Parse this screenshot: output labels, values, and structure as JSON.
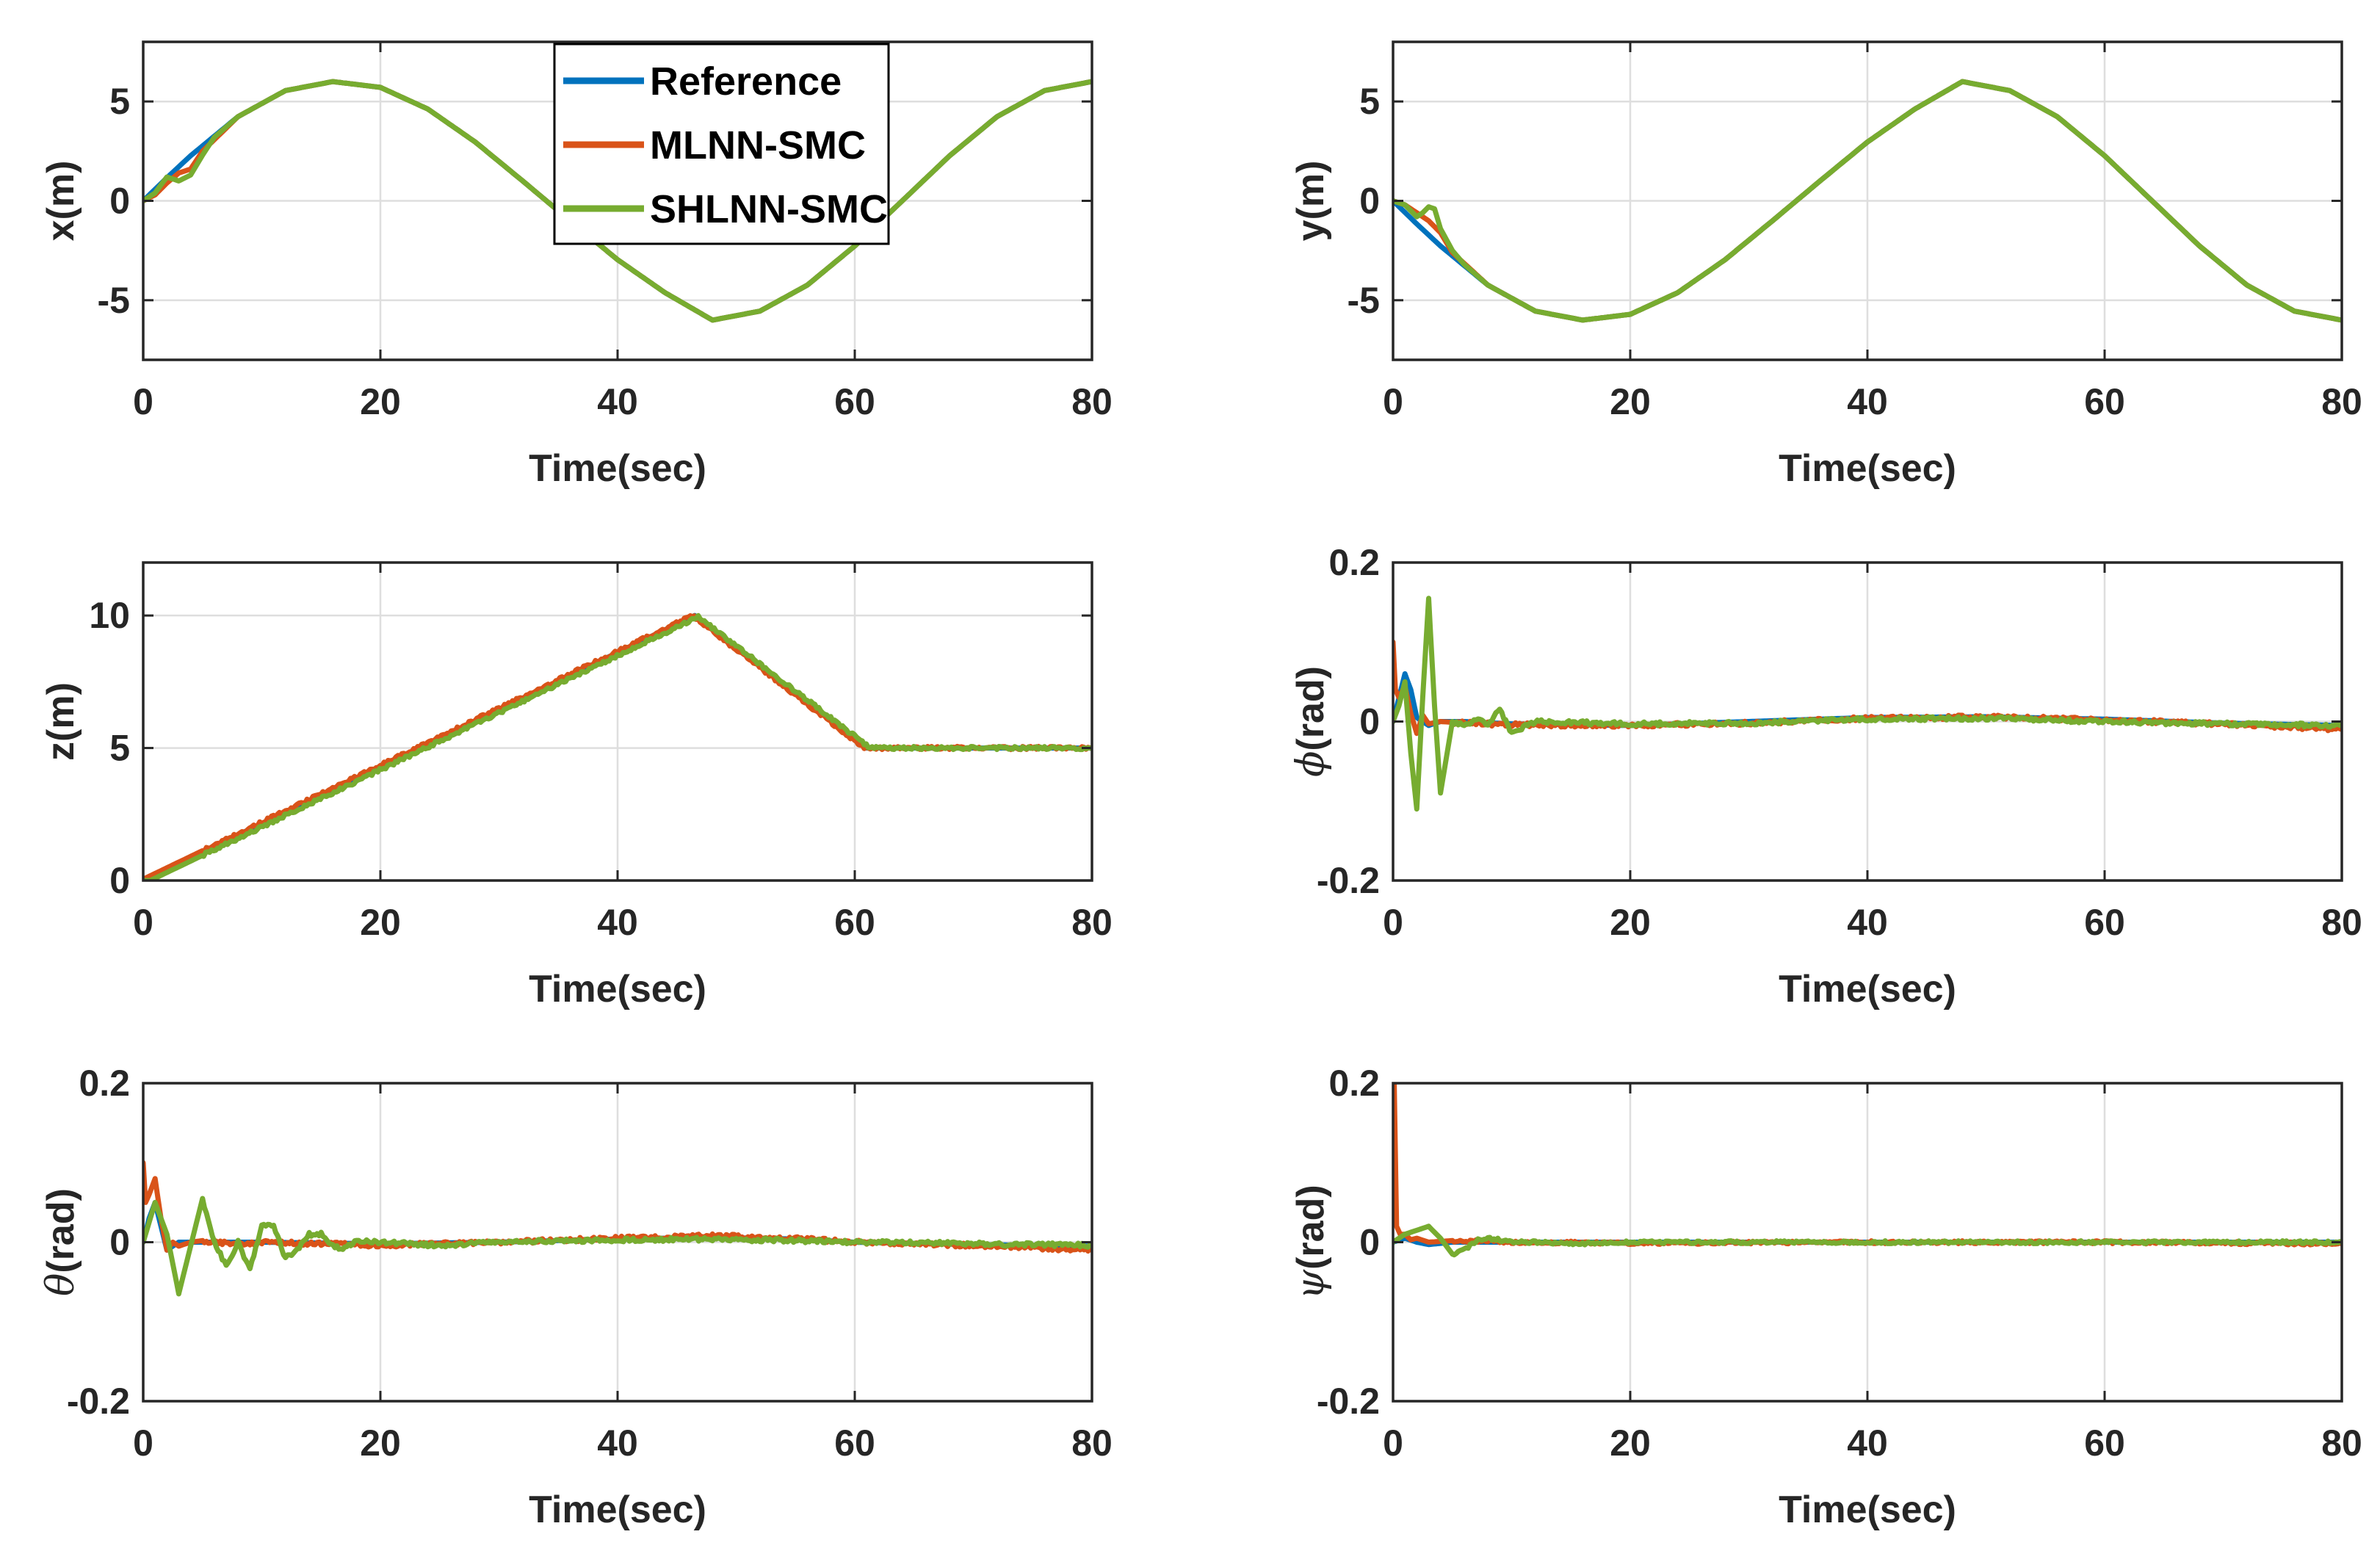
{
  "colors": {
    "reference": "#0072BD",
    "mlnn": "#D95319",
    "shlnn": "#77AC30",
    "grid": "#dedede",
    "axis": "#262626"
  },
  "legend": {
    "placement": "top-center of first panel",
    "entries": [
      "Reference",
      "MLNN-SMC",
      "SHLNN-SMC"
    ]
  },
  "chart_data": [
    {
      "type": "line",
      "panel": "x",
      "xlabel": "Time(sec)",
      "ylabel": "x(m)",
      "ylabel_symbol": "",
      "ylabel_rest": "x(m)",
      "xlim": [
        0,
        80
      ],
      "ylim": [
        -8,
        8
      ],
      "xticks": [
        0,
        20,
        40,
        60,
        80
      ],
      "yticks": [
        -5,
        0,
        5
      ],
      "ytick_labels": [
        "-5",
        "0",
        "5"
      ],
      "grid": true,
      "series": [
        {
          "name": "Reference",
          "x": [
            0,
            2,
            4,
            8,
            12,
            16,
            20,
            24,
            28,
            32,
            36,
            40,
            44,
            48,
            52,
            56,
            60,
            64,
            68,
            72,
            76,
            80
          ],
          "y": [
            0,
            1.16,
            2.27,
            4.24,
            5.55,
            6.0,
            5.71,
            4.62,
            2.96,
            1.0,
            -1.0,
            -2.96,
            -4.62,
            -6.0,
            -5.55,
            -4.24,
            -2.27,
            0,
            2.27,
            4.24,
            5.55,
            6.0
          ]
        },
        {
          "name": "MLNN-SMC",
          "x": [
            0,
            1,
            2,
            3,
            4,
            5,
            8,
            12,
            16,
            20,
            24,
            28,
            32,
            36,
            40,
            44,
            48,
            52,
            56,
            60,
            64,
            68,
            72,
            76,
            80
          ],
          "y": [
            0,
            0.3,
            0.9,
            1.4,
            1.6,
            2.5,
            4.24,
            5.55,
            6.0,
            5.71,
            4.62,
            2.96,
            1.0,
            -1.0,
            -2.96,
            -4.62,
            -6.0,
            -5.55,
            -4.24,
            -2.27,
            0,
            2.27,
            4.24,
            5.55,
            6.0
          ]
        },
        {
          "name": "SHLNN-SMC",
          "x": [
            0,
            1,
            2,
            3,
            4,
            5,
            6,
            8,
            12,
            16,
            20,
            24,
            28,
            32,
            36,
            40,
            44,
            48,
            52,
            56,
            60,
            64,
            68,
            72,
            76,
            80
          ],
          "y": [
            0,
            0.4,
            1.2,
            1.0,
            1.3,
            2.3,
            3.2,
            4.24,
            5.55,
            6.0,
            5.71,
            4.62,
            2.96,
            1.0,
            -1.0,
            -2.96,
            -4.62,
            -6.0,
            -5.55,
            -4.24,
            -2.27,
            0,
            2.27,
            4.24,
            5.55,
            6.0
          ]
        }
      ]
    },
    {
      "type": "line",
      "panel": "y",
      "xlabel": "Time(sec)",
      "ylabel": "y(m)",
      "ylabel_symbol": "",
      "ylabel_rest": "y(m)",
      "xlim": [
        0,
        80
      ],
      "ylim": [
        -8,
        8
      ],
      "xticks": [
        0,
        20,
        40,
        60,
        80
      ],
      "yticks": [
        -5,
        0,
        5
      ],
      "ytick_labels": [
        "-5",
        "0",
        "5"
      ],
      "grid": true,
      "series": [
        {
          "name": "Reference",
          "x": [
            0,
            2,
            4,
            8,
            12,
            16,
            20,
            24,
            28,
            32,
            36,
            40,
            44,
            48,
            52,
            56,
            60,
            64,
            68,
            72,
            76,
            80
          ],
          "y": [
            0,
            -1.16,
            -2.27,
            -4.24,
            -5.55,
            -6.0,
            -5.71,
            -4.62,
            -2.96,
            -1.0,
            1.0,
            2.96,
            4.62,
            6.0,
            5.55,
            4.24,
            2.27,
            0,
            -2.27,
            -4.24,
            -5.55,
            -6.0
          ]
        },
        {
          "name": "MLNN-SMC",
          "x": [
            0,
            1,
            2,
            3,
            4,
            5,
            8,
            12,
            16,
            20,
            24,
            28,
            32,
            36,
            40,
            44,
            48,
            52,
            56,
            60,
            64,
            68,
            72,
            76,
            80
          ],
          "y": [
            0,
            -0.2,
            -0.6,
            -1.0,
            -1.6,
            -2.6,
            -4.24,
            -5.55,
            -6.0,
            -5.71,
            -4.62,
            -2.96,
            -1.0,
            1.0,
            2.96,
            4.62,
            6.0,
            5.55,
            4.24,
            2.27,
            0,
            -2.27,
            -4.24,
            -5.55,
            -6.0
          ]
        },
        {
          "name": "SHLNN-SMC",
          "x": [
            0,
            1,
            2,
            2.5,
            3,
            3.5,
            4,
            5,
            6,
            8,
            12,
            16,
            20,
            24,
            28,
            32,
            36,
            40,
            44,
            48,
            52,
            56,
            60,
            64,
            68,
            72,
            76,
            80
          ],
          "y": [
            0,
            -0.2,
            -0.8,
            -0.6,
            -0.3,
            -0.4,
            -1.4,
            -2.5,
            -3.2,
            -4.24,
            -5.55,
            -6.0,
            -5.71,
            -4.62,
            -2.96,
            -1.0,
            1.0,
            2.96,
            4.62,
            6.0,
            5.55,
            4.24,
            2.27,
            0,
            -2.27,
            -4.24,
            -5.55,
            -6.0
          ]
        }
      ]
    },
    {
      "type": "line",
      "panel": "z",
      "xlabel": "Time(sec)",
      "ylabel": "z(m)",
      "ylabel_symbol": "",
      "ylabel_rest": "z(m)",
      "xlim": [
        0,
        80
      ],
      "ylim": [
        0,
        12
      ],
      "xticks": [
        0,
        20,
        40,
        60,
        80
      ],
      "yticks": [
        0,
        5,
        10
      ],
      "ytick_labels": [
        "0",
        "5",
        "10"
      ],
      "grid": true,
      "series": [
        {
          "name": "Reference",
          "x": [
            0,
            46.5,
            61,
            80
          ],
          "y": [
            0,
            10,
            5,
            5
          ]
        },
        {
          "name": "MLNN-SMC",
          "x": [
            0,
            46.3,
            60.8,
            80
          ],
          "y": [
            0.05,
            10,
            5,
            5
          ]
        },
        {
          "name": "SHLNN-SMC",
          "x": [
            0,
            0.6,
            46.8,
            61.3,
            80
          ],
          "y": [
            0,
            0,
            9.95,
            5,
            5
          ]
        }
      ]
    },
    {
      "type": "line",
      "panel": "phi",
      "xlabel": "Time(sec)",
      "ylabel": "ϕ(rad)",
      "ylabel_symbol": "ϕ",
      "ylabel_rest": "(rad)",
      "xlim": [
        0,
        80
      ],
      "ylim": [
        -0.2,
        0.2
      ],
      "xticks": [
        0,
        20,
        40,
        60,
        80
      ],
      "yticks": [
        -0.2,
        0,
        0.2
      ],
      "ytick_labels": [
        "-0.2",
        "0",
        "0.2"
      ],
      "grid": true,
      "series": [
        {
          "name": "Reference",
          "x": [
            0,
            0.5,
            1,
            1.5,
            2,
            3,
            4,
            6,
            10,
            20,
            30,
            40,
            50,
            60,
            70,
            80
          ],
          "y": [
            0,
            0.03,
            0.06,
            0.04,
            0.005,
            -0.005,
            0,
            0,
            -0.003,
            -0.005,
            0,
            0.005,
            0.006,
            0.003,
            -0.002,
            -0.005
          ]
        },
        {
          "name": "MLNN-SMC",
          "x": [
            0,
            0.2,
            0.5,
            1,
            1.5,
            2,
            2.5,
            3,
            4,
            6,
            10,
            20,
            30,
            40,
            50,
            60,
            70,
            80
          ],
          "y": [
            0.1,
            0.04,
            0.03,
            0.045,
            0.01,
            -0.015,
            0.008,
            -0.003,
            0,
            -0.002,
            -0.004,
            -0.005,
            -0.002,
            0.004,
            0.006,
            0.002,
            -0.003,
            -0.01
          ]
        },
        {
          "name": "SHLNN-SMC",
          "x": [
            0,
            0.5,
            1,
            1.5,
            2,
            2.5,
            3,
            3.5,
            4,
            5,
            6,
            7,
            8,
            9,
            10,
            12,
            20,
            30,
            40,
            50,
            60,
            70,
            80
          ],
          "y": [
            0,
            0.02,
            0.05,
            -0.04,
            -0.11,
            0.03,
            0.155,
            0.02,
            -0.09,
            0.0,
            -0.005,
            0.003,
            -0.003,
            0.015,
            -0.015,
            0.0,
            -0.003,
            -0.002,
            0.003,
            0.004,
            0.0,
            -0.003,
            -0.005
          ]
        }
      ]
    },
    {
      "type": "line",
      "panel": "theta",
      "xlabel": "Time(sec)",
      "ylabel": "θ(rad)",
      "ylabel_symbol": "θ",
      "ylabel_rest": "(rad)",
      "xlim": [
        0,
        80
      ],
      "ylim": [
        -0.2,
        0.2
      ],
      "xticks": [
        0,
        20,
        40,
        60,
        80
      ],
      "yticks": [
        -0.2,
        0,
        0.2
      ],
      "ytick_labels": [
        "-0.2",
        "0",
        "0.2"
      ],
      "grid": true,
      "series": [
        {
          "name": "Reference",
          "x": [
            0,
            0.5,
            1,
            1.5,
            2,
            3,
            5,
            10,
            20,
            30,
            40,
            48,
            55,
            60,
            70,
            80
          ],
          "y": [
            0,
            0.03,
            0.05,
            0.02,
            -0.01,
            0,
            0,
            0,
            -0.002,
            0,
            0.004,
            0.006,
            0.004,
            0.0,
            -0.003,
            -0.005
          ]
        },
        {
          "name": "MLNN-SMC",
          "x": [
            0,
            0.2,
            0.5,
            1,
            1.5,
            2,
            2.5,
            3,
            4,
            5,
            6,
            8,
            10,
            20,
            30,
            40,
            48,
            55,
            60,
            70,
            80
          ],
          "y": [
            0.1,
            0.05,
            0.06,
            0.08,
            0.03,
            -0.01,
            0.0,
            -0.005,
            0.0,
            0.002,
            0.0,
            -0.002,
            0.0,
            -0.004,
            0.0,
            0.005,
            0.008,
            0.005,
            0.0,
            -0.004,
            -0.01
          ]
        },
        {
          "name": "SHLNN-SMC",
          "x": [
            0,
            1,
            2,
            3,
            4,
            5,
            6,
            7,
            8,
            9,
            10,
            11,
            12,
            13,
            14,
            15,
            16,
            17,
            18,
            20,
            25,
            30,
            40,
            48,
            55,
            60,
            70,
            80
          ],
          "y": [
            0,
            0.05,
            0.01,
            -0.065,
            -0.005,
            0.055,
            0.0,
            -0.03,
            0.0,
            -0.035,
            0.02,
            0.02,
            -0.02,
            -0.01,
            0.01,
            0.01,
            -0.005,
            -0.008,
            0.003,
            0.0,
            -0.004,
            0.0,
            0.003,
            0.004,
            0.002,
            0.0,
            -0.002,
            -0.004
          ]
        }
      ]
    },
    {
      "type": "line",
      "panel": "psi",
      "xlabel": "Time(sec)",
      "ylabel": "ψ(rad)",
      "ylabel_symbol": "ψ",
      "ylabel_rest": "(rad)",
      "xlim": [
        0,
        80
      ],
      "ylim": [
        -0.2,
        0.2
      ],
      "xticks": [
        0,
        20,
        40,
        60,
        80
      ],
      "yticks": [
        -0.2,
        0,
        0.2
      ],
      "ytick_labels": [
        "-0.2",
        "0",
        "0.2"
      ],
      "grid": true,
      "series": [
        {
          "name": "Reference",
          "x": [
            0,
            1,
            2,
            3,
            5,
            10,
            20,
            40,
            60,
            80
          ],
          "y": [
            0,
            0.005,
            0.0,
            -0.003,
            0,
            0,
            0,
            0,
            0,
            0
          ]
        },
        {
          "name": "MLNN-SMC",
          "x": [
            0,
            0.1,
            0.3,
            0.6,
            1,
            1.5,
            2,
            3,
            5,
            10,
            20,
            40,
            60,
            80
          ],
          "y": [
            0.2,
            0.2,
            0.02,
            0.01,
            0.01,
            0.003,
            0.005,
            0.0,
            0.002,
            0.0,
            -0.001,
            0.0,
            0.0,
            -0.002
          ]
        },
        {
          "name": "SHLNN-SMC",
          "x": [
            0,
            1,
            2,
            3,
            4,
            5,
            6,
            7,
            8,
            9,
            10,
            12,
            15,
            20,
            40,
            60,
            80
          ],
          "y": [
            0,
            0.01,
            0.015,
            0.02,
            0.005,
            -0.015,
            -0.01,
            0.002,
            0.005,
            0.003,
            0.0,
            0.0,
            -0.002,
            0.0,
            0.0,
            0.0,
            0.0
          ]
        }
      ]
    }
  ]
}
